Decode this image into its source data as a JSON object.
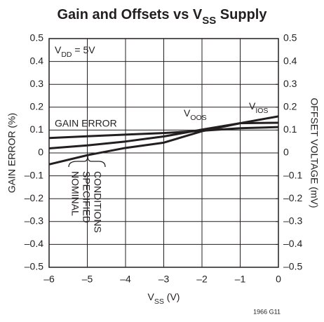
{
  "chart_data": {
    "type": "line",
    "title": [
      "Gain and Offsets vs V",
      "SS",
      " Supply"
    ],
    "xlabel": [
      "V",
      "SS",
      " (V)"
    ],
    "ylabel": "GAIN ERROR (%)",
    "y2label": "OFFSET VOLTAGE (mV)",
    "annotations": [
      [
        "V",
        "DD",
        " = 5V"
      ]
    ],
    "note": [
      "NOMINAL",
      "SPECIFIED",
      "CONDITIONS"
    ],
    "footnote": "1966 G11",
    "x": [
      -6,
      -5,
      -4,
      -3,
      -2,
      -1,
      0
    ],
    "series": [
      {
        "name": "GAIN ERROR",
        "color": "#231f20",
        "values": [
          0.065,
          0.073,
          0.08,
          0.087,
          0.097,
          0.108,
          0.113
        ]
      },
      {
        "name": [
          "V",
          "OOS"
        ],
        "color": "#231f20",
        "axis": "y2",
        "values": [
          0.02,
          0.033,
          0.05,
          0.072,
          0.102,
          0.13,
          0.132
        ]
      },
      {
        "name": [
          "V",
          "IOS"
        ],
        "color": "#231f20",
        "axis": "y2",
        "values": [
          -0.05,
          -0.01,
          0.022,
          0.045,
          0.095,
          0.13,
          0.16
        ]
      }
    ],
    "xlim": [
      -6,
      0
    ],
    "xticks": [
      {
        "value": -6,
        "label": "–6"
      },
      {
        "value": -5,
        "label": "–5"
      },
      {
        "value": -4,
        "label": "–4"
      },
      {
        "value": -3,
        "label": "–3"
      },
      {
        "value": -2,
        "label": "–2"
      },
      {
        "value": -1,
        "label": "–1"
      },
      0
    ],
    "ylim": [
      -0.5,
      0.5
    ],
    "yticks": [
      {
        "value": -0.5,
        "label": "–0.5"
      },
      {
        "value": -0.4,
        "label": "–0.4"
      },
      {
        "value": -0.3,
        "label": "–0.3"
      },
      {
        "value": -0.2,
        "label": "–0.2"
      },
      {
        "value": -0.1,
        "label": "–0.1"
      },
      0,
      0.1,
      0.2,
      0.3,
      0.4,
      0.5
    ],
    "y2lim": [
      -0.5,
      0.5
    ],
    "y2ticks": [
      {
        "value": -0.5,
        "label": "–0.5"
      },
      {
        "value": -0.4,
        "label": "–0.4"
      },
      {
        "value": -0.3,
        "label": "–0.3"
      },
      {
        "value": -0.2,
        "label": "–0.2"
      },
      {
        "value": -0.1,
        "label": "–0.1"
      },
      0,
      0.1,
      0.2,
      0.3,
      0.4,
      0.5
    ],
    "grid": true
  }
}
